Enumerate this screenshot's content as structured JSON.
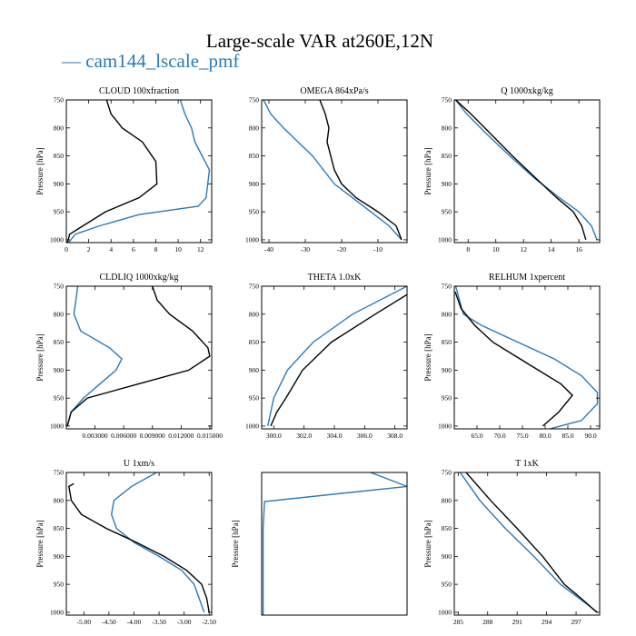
{
  "figure": {
    "title": "Large-scale VAR at260E,12N",
    "legend_label": "— cam144_lscale_pmf",
    "colors": {
      "cam144_lscale_pmf": "#2a7ab8",
      "second_series": "#000000"
    }
  },
  "chart_data": [
    {
      "type": "line",
      "title": "CLOUD  100xfraction",
      "ylabel": "Pressure [hPa]",
      "xlim": [
        0,
        13
      ],
      "ylim": [
        1005,
        750
      ],
      "xticks": [
        0,
        2,
        4,
        6,
        8,
        10,
        12
      ],
      "xticklabels": [
        "0",
        "2",
        "4",
        "6",
        "8",
        "10",
        "12"
      ],
      "yticks": [
        750,
        800,
        850,
        900,
        950,
        1000
      ],
      "yticklabels": [
        "750",
        "800",
        "850",
        "900",
        "950",
        "1000"
      ],
      "series": [
        {
          "name": "cam144_lscale_pmf",
          "color": "#2a7ab8",
          "x": [
            10.2,
            10.6,
            11.2,
            11.5,
            12.8,
            12.5,
            11.8,
            6.5,
            3.0,
            0.8,
            0.2
          ],
          "y": [
            750,
            775,
            800,
            825,
            875,
            925,
            940,
            955,
            975,
            990,
            1005
          ]
        },
        {
          "color": "#000000",
          "x": [
            3.6,
            4.0,
            5.0,
            6.8,
            8.0,
            8.1,
            6.5,
            3.5,
            1.5,
            0.3,
            0.1
          ],
          "y": [
            750,
            775,
            800,
            825,
            860,
            900,
            925,
            950,
            975,
            990,
            1005
          ]
        }
      ]
    },
    {
      "type": "line",
      "title": "OMEGA  864xPa/s",
      "ylabel": "",
      "xlim": [
        -42,
        -2
      ],
      "ylim": [
        1005,
        750
      ],
      "xticks": [
        -40,
        -30,
        -20,
        -10
      ],
      "xticklabels": [
        "-40",
        "-30",
        "-20",
        "-10"
      ],
      "yticks": [
        750,
        800,
        850,
        900,
        950,
        1000
      ],
      "yticklabels": [
        "750",
        "800",
        "850",
        "900",
        "950",
        "1000"
      ],
      "series": [
        {
          "name": "cam144_lscale_pmf",
          "color": "#2a7ab8",
          "x": [
            -41.5,
            -39.5,
            -36,
            -32,
            -28,
            -25,
            -22,
            -17,
            -12,
            -7,
            -3.5
          ],
          "y": [
            750,
            775,
            800,
            825,
            850,
            875,
            900,
            925,
            950,
            975,
            1000
          ]
        },
        {
          "color": "#000000",
          "x": [
            -26,
            -24.5,
            -23.5,
            -24,
            -23,
            -22,
            -20,
            -16,
            -10,
            -5,
            -3.5
          ],
          "y": [
            750,
            775,
            800,
            825,
            850,
            875,
            900,
            925,
            950,
            975,
            1000
          ]
        }
      ]
    },
    {
      "type": "line",
      "title": "Q  1000xkg/kg",
      "ylabel": "Pressure [hPa]",
      "xlim": [
        7,
        17.5
      ],
      "ylim": [
        1005,
        750
      ],
      "xticks": [
        8,
        10,
        12,
        14,
        16
      ],
      "xticklabels": [
        "8",
        "10",
        "12",
        "14",
        "16"
      ],
      "yticks": [
        750,
        800,
        850,
        900,
        950,
        1000
      ],
      "yticklabels": [
        "750",
        "800",
        "850",
        "900",
        "950",
        "1000"
      ],
      "series": [
        {
          "name": "cam144_lscale_pmf",
          "color": "#2a7ab8",
          "x": [
            7.1,
            7.9,
            9.3,
            11.0,
            12.8,
            14.6,
            16.0,
            16.9,
            17.3
          ],
          "y": [
            750,
            775,
            810,
            850,
            890,
            925,
            950,
            975,
            1000
          ]
        },
        {
          "color": "#000000",
          "x": [
            7.1,
            8.2,
            9.6,
            11.2,
            12.9,
            14.4,
            15.6,
            16.2,
            16.5
          ],
          "y": [
            750,
            775,
            810,
            850,
            890,
            925,
            950,
            975,
            1000
          ]
        }
      ]
    },
    {
      "type": "line",
      "title": "CLDLIQ  1000xkg/kg",
      "ylabel": "Pressure [hPa]",
      "xlim": [
        0,
        0.0152
      ],
      "ylim": [
        1005,
        750
      ],
      "xticks": [
        0.003,
        0.006,
        0.009,
        0.012,
        0.015
      ],
      "xticklabels": [
        "0.003000",
        "0.006000",
        "0.009000",
        "0.012000",
        "0.015000"
      ],
      "yticks": [
        750,
        800,
        850,
        900,
        950,
        1000
      ],
      "yticklabels": [
        "750",
        "800",
        "850",
        "900",
        "950",
        "1000"
      ],
      "series": [
        {
          "name": "cam144_lscale_pmf",
          "color": "#2a7ab8",
          "x": [
            0.0012,
            0.001,
            0.0008,
            0.0015,
            0.0045,
            0.0058,
            0.0052,
            0.0035,
            0.0018,
            0.0005,
            0.0001
          ],
          "y": [
            750,
            775,
            800,
            830,
            860,
            880,
            900,
            925,
            950,
            975,
            1000
          ]
        },
        {
          "color": "#000000",
          "x": [
            0.009,
            0.0095,
            0.0108,
            0.0132,
            0.0148,
            0.015,
            0.0128,
            0.0075,
            0.0022,
            0.0005,
            0.0001
          ],
          "y": [
            750,
            775,
            800,
            830,
            860,
            875,
            900,
            925,
            950,
            975,
            1000
          ]
        }
      ]
    },
    {
      "type": "line",
      "title": "THETA  1.0xK",
      "ylabel": "",
      "xlim": [
        299.2,
        308.8
      ],
      "ylim": [
        1005,
        750
      ],
      "xticks": [
        300,
        302,
        304,
        306,
        308
      ],
      "xticklabels": [
        "300.0",
        "302.0",
        "304.0",
        "306.0",
        "308.0"
      ],
      "yticks": [
        750,
        800,
        850,
        900,
        950,
        1000
      ],
      "yticklabels": [
        "750",
        "800",
        "850",
        "900",
        "950",
        "1000"
      ],
      "series": [
        {
          "name": "cam144_lscale_pmf",
          "color": "#2a7ab8",
          "x": [
            308.8,
            305.2,
            302.6,
            300.9,
            300.0,
            299.8,
            299.6
          ],
          "y": [
            750,
            800,
            850,
            900,
            950,
            975,
            1000
          ]
        },
        {
          "color": "#000000",
          "x": [
            308.8,
            306.7,
            303.8,
            301.9,
            300.8,
            300.2,
            299.8
          ],
          "y": [
            765,
            800,
            850,
            900,
            950,
            975,
            1000
          ]
        }
      ]
    },
    {
      "type": "line",
      "title": "RELHUM  1xpercent",
      "ylabel": "Pressure [hPa]",
      "xlim": [
        60,
        92
      ],
      "ylim": [
        1005,
        750
      ],
      "xticks": [
        65,
        70,
        75,
        80,
        85,
        90
      ],
      "xticklabels": [
        "65.0",
        "70.0",
        "75.0",
        "80.0",
        "85.0",
        "90.0"
      ],
      "yticks": [
        750,
        800,
        850,
        900,
        950,
        1000
      ],
      "yticklabels": [
        "750",
        "800",
        "850",
        "900",
        "950",
        "1000"
      ],
      "series": [
        {
          "name": "cam144_lscale_pmf",
          "color": "#2a7ab8",
          "x": [
            60.3,
            62.0,
            66.0,
            74.0,
            82.0,
            88.0,
            91.5,
            91.5,
            88.0,
            81.0
          ],
          "y": [
            750,
            800,
            820,
            850,
            880,
            910,
            940,
            960,
            990,
            1005
          ]
        },
        {
          "color": "#000000",
          "x": [
            60.2,
            61.5,
            64.5,
            68.5,
            73.5,
            78.5,
            83.5,
            86.0,
            83.0,
            79.5
          ],
          "y": [
            760,
            790,
            820,
            850,
            875,
            900,
            925,
            945,
            975,
            1000
          ]
        }
      ]
    },
    {
      "type": "line",
      "title": "U  1xm/s",
      "ylabel": "Pressure [hPa]",
      "xlim": [
        -5.35,
        -2.45
      ],
      "ylim": [
        1005,
        750
      ],
      "xticks": [
        -5.0,
        -4.5,
        -4.0,
        -3.5,
        -3.0,
        -2.5
      ],
      "xticklabels": [
        "-5.00",
        "-4.50",
        "-4.00",
        "-3.50",
        "-3.00",
        "-2.50"
      ],
      "yticks": [
        750,
        800,
        850,
        900,
        950,
        1000
      ],
      "yticklabels": [
        "750",
        "800",
        "850",
        "900",
        "950",
        "1000"
      ],
      "series": [
        {
          "name": "cam144_lscale_pmf",
          "color": "#2a7ab8",
          "x": [
            -3.55,
            -4.05,
            -4.4,
            -4.45,
            -4.35,
            -4.0,
            -3.5,
            -3.05,
            -2.8,
            -2.7,
            -2.6
          ],
          "y": [
            750,
            775,
            800,
            825,
            850,
            875,
            900,
            925,
            950,
            975,
            1000
          ]
        },
        {
          "color": "#000000",
          "x": [
            -5.2,
            -5.3,
            -5.25,
            -5.05,
            -4.55,
            -3.95,
            -3.4,
            -2.95,
            -2.65,
            -2.55,
            -2.5
          ],
          "y": [
            770,
            775,
            800,
            825,
            850,
            875,
            900,
            925,
            950,
            975,
            1000
          ]
        }
      ]
    },
    {
      "type": "line",
      "title": "",
      "ylabel": "Pressure [hPa]",
      "xlim": [
        0,
        1
      ],
      "ylim": [
        1005,
        750
      ],
      "xticks": [],
      "xticklabels": [],
      "yticks": [],
      "yticklabels": [],
      "series": [
        {
          "name": "cam144_lscale_pmf",
          "color": "#2a7ab8",
          "x": [
            0.75,
            1.0,
            0.02,
            0.01,
            0.01,
            0.01
          ],
          "y": [
            750,
            775,
            802,
            850,
            950,
            1005
          ]
        }
      ]
    },
    {
      "type": "line",
      "title": "T  1xK",
      "ylabel": "Pressure [hPa]",
      "xlim": [
        284.6,
        299.4
      ],
      "ylim": [
        1005,
        750
      ],
      "xticks": [
        285,
        288,
        291,
        294,
        297
      ],
      "xticklabels": [
        "285",
        "288",
        "291",
        "294",
        "297"
      ],
      "yticks": [
        750,
        800,
        850,
        900,
        950,
        1000
      ],
      "yticklabels": [
        "750",
        "800",
        "850",
        "900",
        "950",
        "1000"
      ],
      "series": [
        {
          "name": "cam144_lscale_pmf",
          "color": "#2a7ab8",
          "x": [
            285.2,
            287.2,
            289.8,
            292.7,
            295.4,
            297.3,
            299.2
          ],
          "y": [
            750,
            800,
            850,
            900,
            950,
            975,
            1000
          ]
        },
        {
          "color": "#000000",
          "x": [
            285.8,
            288.3,
            291.0,
            293.6,
            295.8,
            297.5,
            299.1
          ],
          "y": [
            750,
            800,
            850,
            900,
            950,
            975,
            1000
          ]
        }
      ]
    }
  ]
}
